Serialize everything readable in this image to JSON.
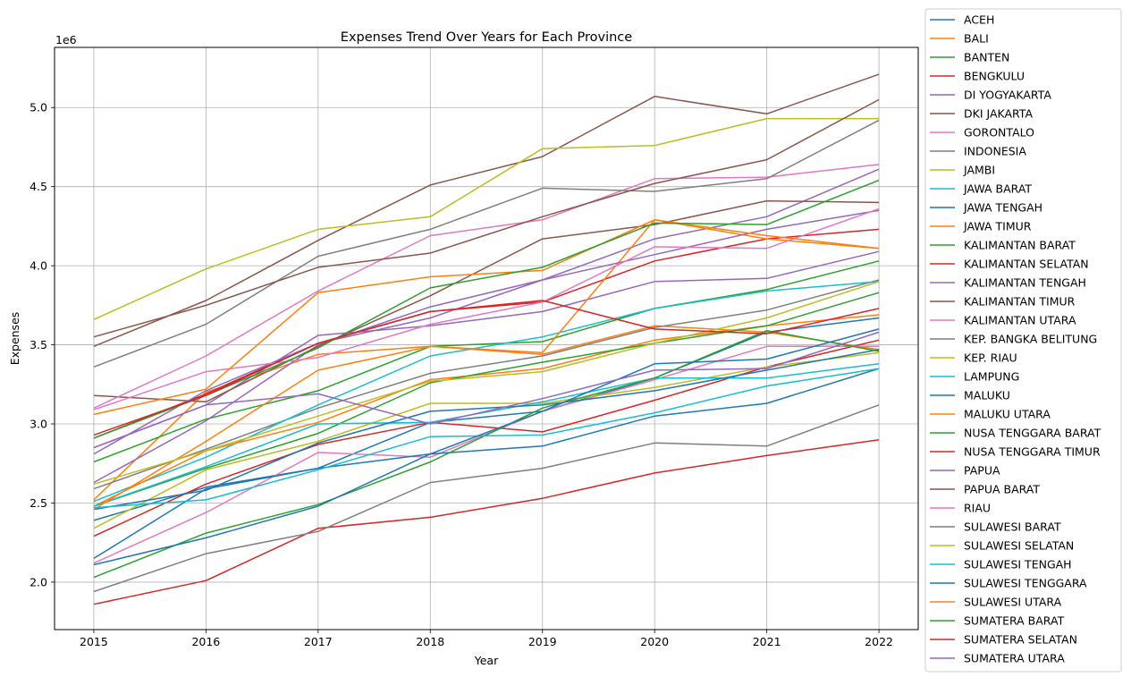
{
  "chart_data": {
    "type": "line",
    "title": "Expenses Trend Over Years for Each Province",
    "xlabel": "Year",
    "ylabel": "Expenses",
    "y_offset_label": "1e6",
    "x": [
      2015,
      2016,
      2017,
      2018,
      2019,
      2020,
      2021,
      2022
    ],
    "x_ticks": [
      "2015",
      "2016",
      "2017",
      "2018",
      "2019",
      "2020",
      "2021",
      "2022"
    ],
    "y_ticks": [
      "2.0",
      "2.5",
      "3.0",
      "3.5",
      "4.0",
      "4.5",
      "5.0"
    ],
    "y_tick_values": [
      2.0,
      2.5,
      3.0,
      3.5,
      4.0,
      4.5,
      5.0
    ],
    "xlim": [
      2014.65,
      2022.35
    ],
    "ylim": [
      1.7,
      5.38
    ],
    "grid": true,
    "legend_position": "outside-right",
    "colors": [
      "#1f77b4",
      "#ff7f0e",
      "#2ca02c",
      "#d62728",
      "#9467bd",
      "#8c564b",
      "#e377c2",
      "#7f7f7f",
      "#bcbd22",
      "#17becf"
    ],
    "series": [
      {
        "name": "ACEH",
        "values": [
          2.39,
          2.6,
          2.72,
          3.01,
          3.08,
          3.29,
          3.58,
          3.67
        ]
      },
      {
        "name": "BALI",
        "values": [
          2.52,
          3.2,
          3.44,
          3.49,
          3.44,
          3.62,
          3.58,
          3.47
        ]
      },
      {
        "name": "BANTEN",
        "values": [
          2.76,
          3.03,
          3.21,
          3.49,
          3.52,
          3.73,
          3.85,
          4.03
        ]
      },
      {
        "name": "BENGKULU",
        "values": [
          2.29,
          2.62,
          2.87,
          3.01,
          2.95,
          3.15,
          3.36,
          3.53
        ]
      },
      {
        "name": "DI YOGYAKARTA",
        "values": [
          2.85,
          3.12,
          3.56,
          3.62,
          3.71,
          3.9,
          3.92,
          4.09
        ]
      },
      {
        "name": "DKI JAKARTA",
        "values": [
          3.49,
          3.78,
          4.16,
          4.51,
          4.69,
          5.07,
          4.96,
          5.21
        ]
      },
      {
        "name": "GORONTALO",
        "values": [
          2.12,
          2.44,
          2.82,
          2.79,
          3.08,
          3.28,
          3.49,
          3.49
        ]
      },
      {
        "name": "INDONESIA",
        "values": [
          2.59,
          2.84,
          3.1,
          3.32,
          3.43,
          3.61,
          3.72,
          3.91
        ]
      },
      {
        "name": "JAMBI",
        "values": [
          3.66,
          3.98,
          4.23,
          4.31,
          4.74,
          4.76,
          4.93,
          4.93
        ]
      },
      {
        "name": "JAWA BARAT",
        "values": [
          2.51,
          2.79,
          3.12,
          3.43,
          3.55,
          3.73,
          3.84,
          3.9
        ]
      },
      {
        "name": "JAWA TENGAH",
        "values": [
          2.15,
          2.59,
          2.72,
          2.81,
          2.86,
          3.05,
          3.13,
          3.35
        ]
      },
      {
        "name": "JAWA TIMUR",
        "values": [
          2.48,
          2.83,
          3.01,
          3.28,
          3.35,
          3.53,
          3.62,
          3.69
        ]
      },
      {
        "name": "KALIMANTAN BARAT",
        "values": [
          2.48,
          2.72,
          2.94,
          3.26,
          3.39,
          3.51,
          3.62,
          3.83
        ]
      },
      {
        "name": "KALIMANTAN SELATAN",
        "values": [
          2.91,
          3.19,
          3.51,
          3.71,
          3.77,
          4.03,
          4.17,
          4.23
        ]
      },
      {
        "name": "KALIMANTAN TENGAH",
        "values": [
          2.63,
          3.02,
          3.5,
          3.74,
          3.91,
          4.17,
          4.31,
          4.61
        ]
      },
      {
        "name": "KALIMANTAN TIMUR",
        "values": [
          3.18,
          3.14,
          3.49,
          3.81,
          4.17,
          4.26,
          4.41,
          4.4
        ]
      },
      {
        "name": "KALIMANTAN UTARA",
        "values": [
          3.1,
          3.43,
          3.84,
          4.19,
          4.29,
          4.55,
          4.56,
          4.64
        ]
      },
      {
        "name": "KEP. BANGKA BELITUNG",
        "values": [
          3.36,
          3.63,
          4.06,
          4.23,
          4.49,
          4.47,
          4.55,
          4.92
        ]
      },
      {
        "name": "KEP. RIAU",
        "values": [
          2.34,
          2.71,
          2.89,
          3.13,
          3.13,
          3.23,
          3.36,
          3.45
        ]
      },
      {
        "name": "LAMPUNG",
        "values": [
          2.48,
          2.73,
          3.0,
          3.01,
          3.14,
          3.29,
          3.29,
          3.38
        ]
      },
      {
        "name": "MALUKU",
        "values": [
          2.46,
          2.58,
          2.88,
          3.08,
          3.12,
          3.21,
          3.34,
          3.47
        ]
      },
      {
        "name": "MALUKU UTARA",
        "values": [
          2.46,
          2.89,
          3.34,
          3.49,
          3.45,
          4.29,
          4.17,
          4.11
        ]
      },
      {
        "name": "NUSA TENGGARA BARAT",
        "values": [
          2.03,
          2.31,
          2.49,
          2.76,
          3.1,
          3.29,
          3.59,
          3.46
        ]
      },
      {
        "name": "NUSA TENGGARA TIMUR",
        "values": [
          1.86,
          2.01,
          2.34,
          2.41,
          2.53,
          2.69,
          2.8,
          2.9
        ]
      },
      {
        "name": "PAPUA",
        "values": [
          2.81,
          3.21,
          3.51,
          3.67,
          3.91,
          4.07,
          4.23,
          4.35
        ]
      },
      {
        "name": "PAPUA BARAT",
        "values": [
          3.55,
          3.75,
          3.99,
          4.08,
          4.31,
          4.52,
          4.67,
          5.05
        ]
      },
      {
        "name": "RIAU",
        "values": [
          3.09,
          3.33,
          3.42,
          3.63,
          3.77,
          4.12,
          4.11,
          4.36
        ]
      },
      {
        "name": "SULAWESI BARAT",
        "values": [
          1.94,
          2.18,
          2.32,
          2.63,
          2.72,
          2.88,
          2.86,
          3.12
        ]
      },
      {
        "name": "SULAWESI SELATAN",
        "values": [
          2.62,
          2.83,
          3.05,
          3.27,
          3.33,
          3.51,
          3.67,
          3.9
        ]
      },
      {
        "name": "SULAWESI TENGAH",
        "values": [
          2.47,
          2.52,
          2.71,
          2.92,
          2.93,
          3.07,
          3.24,
          3.35
        ]
      },
      {
        "name": "SULAWESI TENGGARA",
        "values": [
          2.11,
          2.28,
          2.48,
          2.81,
          3.08,
          3.38,
          3.41,
          3.6
        ]
      },
      {
        "name": "SULAWESI UTARA",
        "values": [
          3.06,
          3.22,
          3.83,
          3.93,
          3.97,
          4.29,
          4.19,
          4.11
        ]
      },
      {
        "name": "SUMATERA BARAT",
        "values": [
          2.91,
          3.18,
          3.48,
          3.86,
          3.99,
          4.27,
          4.26,
          4.54
        ]
      },
      {
        "name": "SUMATERA SELATAN",
        "values": [
          2.93,
          3.18,
          3.51,
          3.71,
          3.78,
          3.6,
          3.57,
          3.73
        ]
      },
      {
        "name": "SUMATERA UTARA",
        "values": [
          2.85,
          3.12,
          3.19,
          3.0,
          3.16,
          3.34,
          3.35,
          3.58
        ]
      }
    ]
  }
}
